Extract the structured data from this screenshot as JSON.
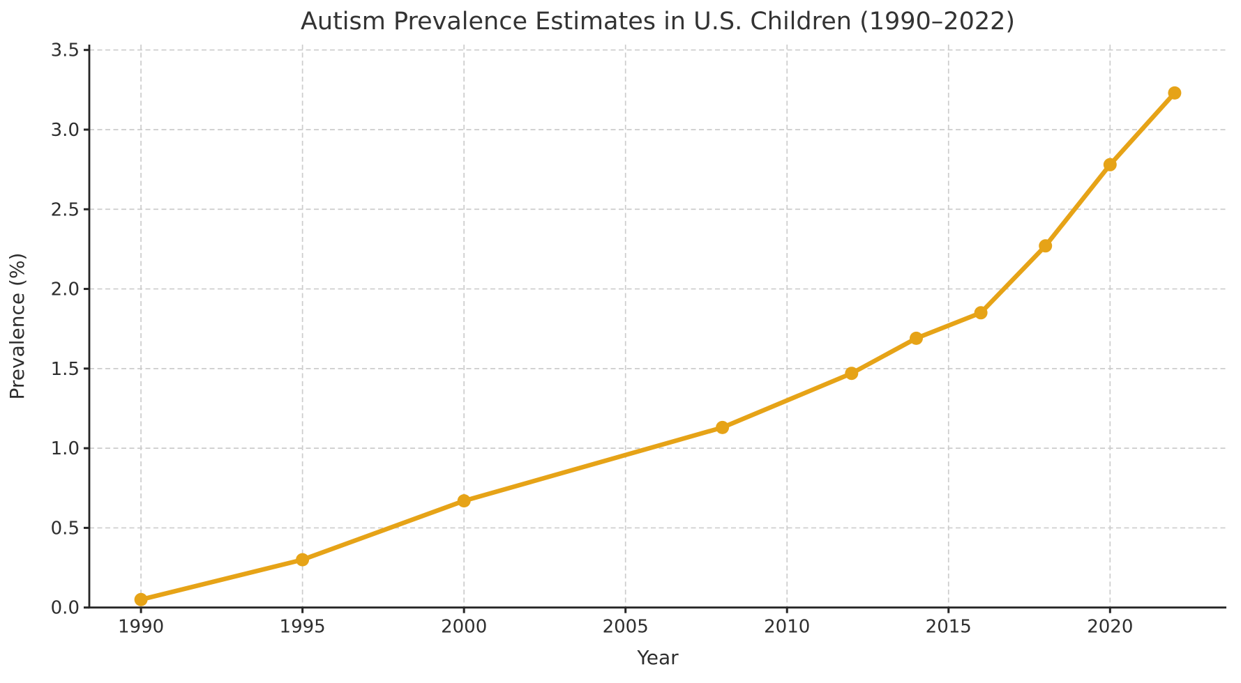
{
  "chart_data": {
    "type": "line",
    "title": "Autism Prevalence Estimates in U.S. Children (1990–2022)",
    "xlabel": "Year",
    "ylabel": "Prevalence (%)",
    "series": [
      {
        "name": "Autism prevalence estimate",
        "x": [
          1990,
          1995,
          2000,
          2008,
          2012,
          2014,
          2016,
          2018,
          2020,
          2022
        ],
        "values": [
          0.05,
          0.3,
          0.67,
          1.13,
          1.47,
          1.69,
          1.85,
          2.27,
          2.78,
          3.23
        ]
      }
    ],
    "xticks": [
      1990,
      1995,
      2000,
      2005,
      2010,
      2015,
      2020
    ],
    "yticks": [
      0.0,
      0.5,
      1.0,
      1.5,
      2.0,
      2.5,
      3.0,
      3.5
    ],
    "xlim": [
      1988.4,
      2023.6
    ],
    "ylim": [
      0,
      3.5
    ],
    "grid": true,
    "grid_style": "dashed",
    "legend": "none",
    "marker": "circle",
    "colors": {
      "line": "#E6A317",
      "marker": "#E6A317",
      "grid": "#cccccc",
      "spine": "#262626",
      "text": "#2e2e2e",
      "background": "#ffffff"
    }
  }
}
